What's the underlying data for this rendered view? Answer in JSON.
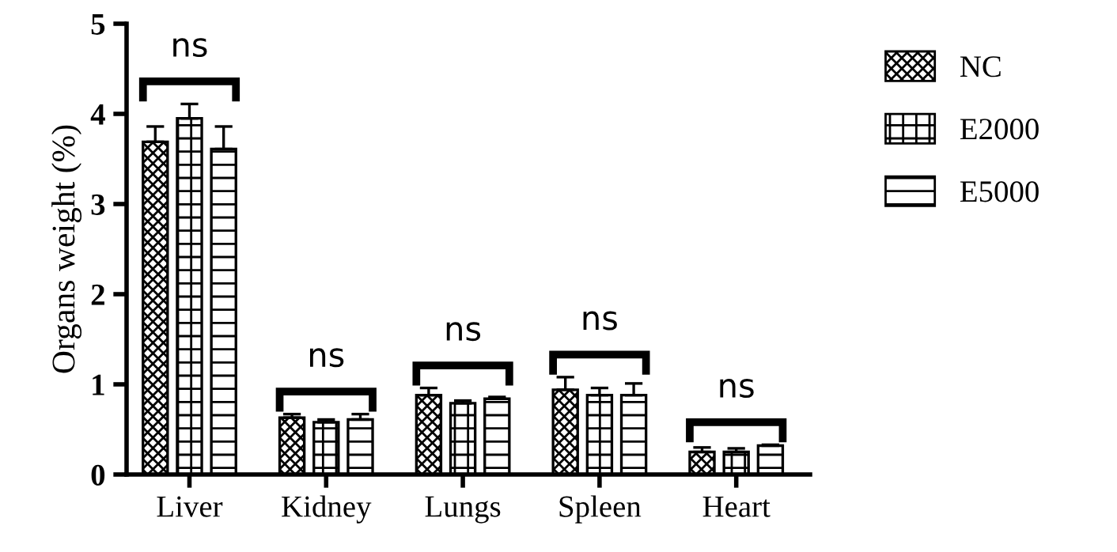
{
  "chart_data": {
    "type": "bar",
    "ylabel": "Organs weight (%)",
    "categories": [
      "Liver",
      "Kidney",
      "Lungs",
      "Spleen",
      "Heart"
    ],
    "series": [
      {
        "name": "NC",
        "color": "#000000",
        "values": [
          3.69,
          0.63,
          0.88,
          0.94,
          0.25
        ],
        "errors": [
          0.17,
          0.04,
          0.08,
          0.14,
          0.05
        ]
      },
      {
        "name": "E2000",
        "color": "#000000",
        "values": [
          3.95,
          0.58,
          0.79,
          0.88,
          0.25
        ],
        "errors": [
          0.16,
          0.03,
          0.03,
          0.08,
          0.04
        ]
      },
      {
        "name": "E5000",
        "color": "#000000",
        "values": [
          3.61,
          0.61,
          0.84,
          0.88,
          0.32
        ],
        "errors": [
          0.25,
          0.06,
          0.02,
          0.13,
          0.01
        ]
      }
    ],
    "ylim": [
      0,
      5
    ],
    "yticks": [
      0,
      1,
      2,
      3,
      4,
      5
    ],
    "grid": false,
    "legend": "right",
    "annotations": [
      "ns",
      "ns",
      "ns",
      "ns",
      "ns"
    ]
  }
}
